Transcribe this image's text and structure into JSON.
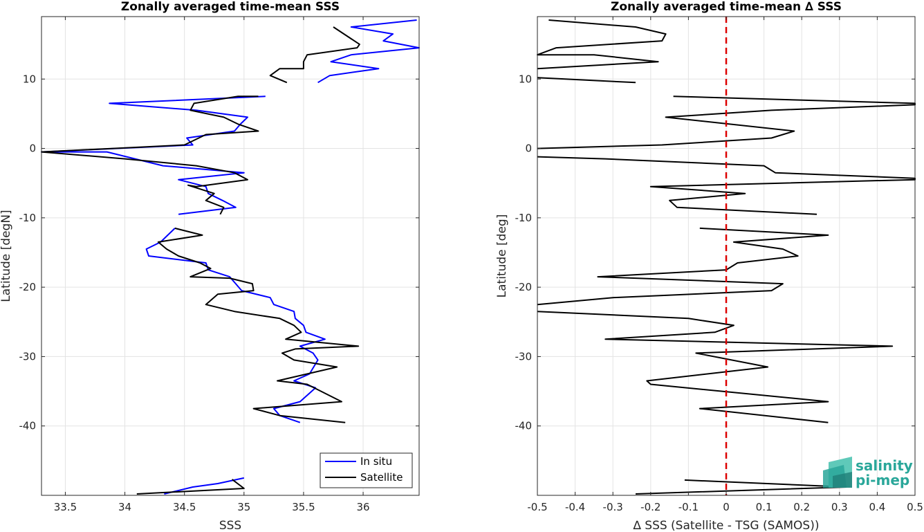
{
  "chart_data": [
    {
      "type": "line",
      "title": "Zonally averaged time-mean SSS",
      "xlabel": "SSS",
      "ylabel": "Latitude [degN]",
      "xlim": [
        33.3,
        36.47
      ],
      "ylim": [
        -50,
        19
      ],
      "xticks": [
        33.5,
        34,
        34.5,
        35,
        35.5,
        36
      ],
      "xtick_labels": [
        "33.5",
        "34",
        "34.5",
        "35",
        "35.5",
        "36"
      ],
      "yticks": [
        -40,
        -30,
        -20,
        -10,
        0,
        10
      ],
      "ytick_labels": [
        "-40",
        "-30",
        "-20",
        "-10",
        "0",
        "10"
      ],
      "grid": true,
      "legend_position": "bottom-right",
      "series": [
        {
          "name": "In situ",
          "color": "#0000ff",
          "segments": [
            [
              [
                36.45,
                18.5
              ],
              [
                35.9,
                17.5
              ],
              [
                36.25,
                16.5
              ],
              [
                36.17,
                15.5
              ],
              [
                36.47,
                14.5
              ],
              [
                35.9,
                13.5
              ],
              [
                35.73,
                12.5
              ],
              [
                36.13,
                11.5
              ],
              [
                35.72,
                10.5
              ],
              [
                35.62,
                9.5
              ]
            ],
            [
              [
                35.18,
                7.5
              ],
              [
                33.87,
                6.5
              ],
              [
                34.6,
                5.5
              ],
              [
                35.03,
                4.5
              ],
              [
                34.97,
                3.5
              ],
              [
                34.92,
                2.5
              ],
              [
                34.52,
                1.5
              ],
              [
                34.57,
                0.5
              ],
              [
                33.3,
                -0.5
              ],
              [
                33.85,
                -0.5
              ],
              [
                34.32,
                -2.5
              ],
              [
                35.0,
                -3.5
              ],
              [
                34.45,
                -4.5
              ],
              [
                34.68,
                -5.5
              ],
              [
                34.7,
                -6.5
              ],
              [
                34.82,
                -7.5
              ],
              [
                34.93,
                -8.5
              ],
              [
                34.45,
                -9.5
              ]
            ],
            [
              [
                34.42,
                -11.5
              ],
              [
                34.3,
                -13.5
              ],
              [
                34.18,
                -14.5
              ],
              [
                34.2,
                -15.5
              ],
              [
                34.68,
                -16.5
              ],
              [
                34.7,
                -17.5
              ],
              [
                34.88,
                -18.5
              ],
              [
                34.93,
                -19.5
              ],
              [
                34.98,
                -20.5
              ],
              [
                35.22,
                -21.5
              ],
              [
                35.25,
                -22.5
              ],
              [
                35.42,
                -23.5
              ],
              [
                35.43,
                -24.5
              ],
              [
                35.5,
                -25.5
              ],
              [
                35.52,
                -26.5
              ],
              [
                35.68,
                -27.5
              ],
              [
                35.47,
                -28.5
              ],
              [
                35.58,
                -29.5
              ],
              [
                35.62,
                -30.5
              ],
              [
                35.55,
                -32.5
              ],
              [
                35.42,
                -33.5
              ],
              [
                35.6,
                -34.5
              ],
              [
                35.47,
                -36.5
              ],
              [
                35.25,
                -37.5
              ],
              [
                35.3,
                -38.5
              ],
              [
                35.47,
                -39.5
              ]
            ],
            [
              [
                35.0,
                -47.5
              ],
              [
                34.78,
                -48.3
              ],
              [
                34.57,
                -48.8
              ],
              [
                34.33,
                -49.8
              ]
            ]
          ]
        },
        {
          "name": "Satellite",
          "color": "#000000",
          "segments": [
            [
              [
                35.75,
                17.5
              ],
              [
                35.97,
                15.0
              ],
              [
                35.95,
                14.5
              ],
              [
                35.53,
                13.5
              ],
              [
                35.5,
                12.5
              ],
              [
                35.5,
                11.5
              ],
              [
                35.3,
                11.5
              ],
              [
                35.22,
                10.5
              ],
              [
                35.36,
                9.5
              ]
            ],
            [
              [
                35.12,
                7.5
              ],
              [
                34.95,
                7.5
              ],
              [
                34.58,
                6.5
              ],
              [
                34.55,
                5.5
              ],
              [
                34.83,
                4.5
              ],
              [
                34.95,
                3.5
              ],
              [
                35.12,
                2.5
              ],
              [
                34.68,
                2.0
              ],
              [
                34.5,
                0.5
              ],
              [
                33.3,
                -0.5
              ],
              [
                34.0,
                -1.5
              ],
              [
                34.6,
                -2.5
              ],
              [
                34.92,
                -3.5
              ],
              [
                35.03,
                -4.5
              ],
              [
                34.6,
                -5.5
              ],
              [
                34.53,
                -5.3
              ],
              [
                34.75,
                -6.5
              ],
              [
                34.68,
                -7.5
              ],
              [
                34.83,
                -8.5
              ],
              [
                34.8,
                -9.5
              ]
            ],
            [
              [
                34.42,
                -11.5
              ],
              [
                34.65,
                -12.5
              ],
              [
                34.28,
                -13.5
              ],
              [
                34.35,
                -14.5
              ],
              [
                34.45,
                -15.5
              ],
              [
                34.63,
                -16.5
              ],
              [
                34.72,
                -17.3
              ],
              [
                34.55,
                -18.5
              ],
              [
                34.88,
                -18.7
              ],
              [
                35.07,
                -19.5
              ],
              [
                35.08,
                -20.5
              ],
              [
                34.78,
                -21.0
              ],
              [
                34.68,
                -22.5
              ],
              [
                34.92,
                -23.5
              ],
              [
                35.3,
                -24.5
              ],
              [
                35.42,
                -25.5
              ],
              [
                35.48,
                -26.5
              ],
              [
                35.35,
                -27.5
              ],
              [
                35.96,
                -28.5
              ],
              [
                35.43,
                -28.9
              ],
              [
                35.32,
                -29.5
              ],
              [
                35.42,
                -30.5
              ],
              [
                35.78,
                -31.5
              ],
              [
                35.28,
                -33.5
              ],
              [
                35.53,
                -34.0
              ],
              [
                35.82,
                -36.5
              ],
              [
                35.08,
                -37.5
              ],
              [
                35.3,
                -38.5
              ],
              [
                35.85,
                -39.5
              ]
            ],
            [
              [
                34.9,
                -47.7
              ],
              [
                35.0,
                -49.0
              ],
              [
                34.1,
                -49.8
              ]
            ]
          ]
        }
      ]
    },
    {
      "type": "line",
      "title": "Zonally averaged time-mean ∆ SSS",
      "xlabel": "∆ SSS (Satellite - TSG (SAMOS))",
      "ylabel": "Latitude [deg]",
      "xlim": [
        -0.5,
        0.5
      ],
      "ylim": [
        -50,
        19
      ],
      "xticks": [
        -0.5,
        -0.4,
        -0.3,
        -0.2,
        -0.1,
        0,
        0.1,
        0.2,
        0.3,
        0.4,
        0.5
      ],
      "xtick_labels": [
        "-0.5",
        "-0.4",
        "-0.3",
        "-0.2",
        "-0.1",
        "0",
        "0.1",
        "0.2",
        "0.3",
        "0.4",
        "0.5"
      ],
      "yticks": [
        -40,
        -30,
        -20,
        -10,
        0,
        10
      ],
      "ytick_labels": [
        "-40",
        "-30",
        "-20",
        "-10",
        "0",
        "10"
      ],
      "grid": true,
      "zero_line": {
        "x": 0,
        "color": "#dd0000",
        "style": "dashed"
      },
      "series": [
        {
          "name": "",
          "color": "#000000",
          "segments": [
            [
              [
                -0.47,
                18.5
              ],
              [
                -0.24,
                17.5
              ],
              [
                -0.16,
                16.5
              ],
              [
                -0.17,
                15.5
              ],
              [
                -0.45,
                14.5
              ],
              [
                -0.5,
                13.5
              ],
              [
                -0.35,
                13.5
              ],
              [
                -0.18,
                12.5
              ],
              [
                -0.5,
                11.5
              ]
            ],
            [
              [
                -0.5,
                10.2
              ],
              [
                -0.24,
                9.5
              ]
            ],
            [
              [
                -0.14,
                7.5
              ],
              [
                0.5,
                6.5
              ],
              [
                0.5,
                6.3
              ],
              [
                0.12,
                5.5
              ],
              [
                -0.16,
                4.5
              ],
              [
                0.18,
                2.5
              ],
              [
                0.12,
                1.5
              ],
              [
                -0.17,
                0.5
              ],
              [
                -0.5,
                0.0
              ]
            ],
            [
              [
                -0.5,
                -1.2
              ],
              [
                -0.32,
                -1.5
              ],
              [
                0.1,
                -2.5
              ],
              [
                0.13,
                -3.5
              ],
              [
                0.5,
                -4.3
              ],
              [
                0.5,
                -4.5
              ],
              [
                -0.2,
                -5.5
              ],
              [
                0.05,
                -6.5
              ],
              [
                -0.15,
                -7.5
              ],
              [
                -0.13,
                -8.5
              ],
              [
                0.24,
                -9.5
              ]
            ],
            [
              [
                -0.07,
                -11.5
              ],
              [
                0.27,
                -12.5
              ],
              [
                0.02,
                -13.5
              ],
              [
                0.15,
                -14.5
              ],
              [
                0.19,
                -15.5
              ],
              [
                0.03,
                -16.5
              ],
              [
                0.0,
                -17.5
              ],
              [
                -0.34,
                -18.5
              ],
              [
                0.15,
                -19.5
              ],
              [
                0.12,
                -20.5
              ],
              [
                -0.3,
                -21.5
              ],
              [
                -0.5,
                -22.5
              ]
            ],
            [
              [
                -0.5,
                -23.5
              ],
              [
                -0.1,
                -24.5
              ],
              [
                0.02,
                -25.5
              ],
              [
                -0.03,
                -26.5
              ],
              [
                -0.32,
                -27.5
              ],
              [
                0.44,
                -28.5
              ],
              [
                -0.08,
                -29.5
              ],
              [
                0.11,
                -31.5
              ],
              [
                -0.21,
                -33.5
              ],
              [
                -0.2,
                -34.0
              ],
              [
                0.27,
                -36.5
              ],
              [
                -0.07,
                -37.5
              ],
              [
                0.27,
                -39.5
              ]
            ],
            [
              [
                -0.11,
                -47.8
              ],
              [
                0.32,
                -48.8
              ],
              [
                -0.24,
                -49.8
              ]
            ]
          ]
        }
      ]
    }
  ],
  "legend": {
    "items": [
      {
        "label": "In situ",
        "color": "#0000ff"
      },
      {
        "label": "Satellite",
        "color": "#000000"
      }
    ]
  },
  "logo": {
    "line1": "salinity",
    "line2": "pi-mep",
    "color": "#2aa79a"
  }
}
